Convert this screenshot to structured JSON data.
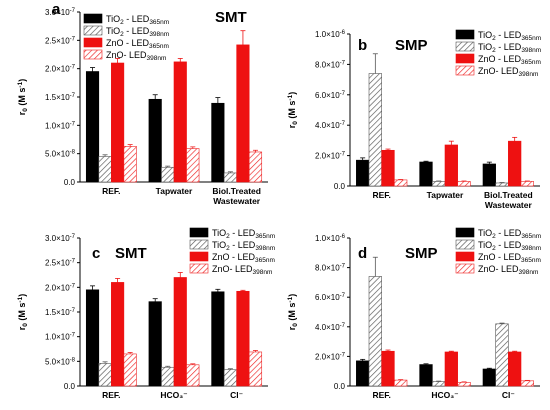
{
  "colors": {
    "tio2_365": "#000000",
    "tio2_398_hatch": "#555555",
    "zno_365": "#ee1111",
    "zno_398_hatch": "#ee2222"
  },
  "chart_data": [
    {
      "type": "bar",
      "panel": "a",
      "title": "SMT",
      "ylabel_main": "r",
      "ylabel_sub": "0",
      "ylabel_unit": "(M s",
      "ylabel_sup": "-1",
      "ylabel_close": ")",
      "categories": [
        {
          "lines": [
            "REF."
          ]
        },
        {
          "lines": [
            "Tapwater"
          ]
        },
        {
          "lines": [
            "Biol.Treated",
            "Wastewater"
          ]
        }
      ],
      "ylim": [
        0,
        3e-07
      ],
      "ticks": [
        {
          "value": 0,
          "mant": "0.0",
          "exp": ""
        },
        {
          "value": 5e-08,
          "mant": "5.0",
          "exp": "-8"
        },
        {
          "value": 1e-07,
          "mant": "1.0",
          "exp": "-7"
        },
        {
          "value": 1.5e-07,
          "mant": "1.5",
          "exp": "-7"
        },
        {
          "value": 2e-07,
          "mant": "2.0",
          "exp": "-7"
        },
        {
          "value": 2.5e-07,
          "mant": "2.5",
          "exp": "-7"
        },
        {
          "value": 3e-07,
          "mant": "3.0",
          "exp": "-7"
        }
      ],
      "legend_position": "top-left",
      "series": [
        {
          "name": "TiO",
          "name_sub": "2",
          "name_tail": " - LED",
          "name_led": "365nm",
          "style": "tio2_365",
          "values": [
            1.95e-07,
            1.46e-07,
            1.39e-07
          ],
          "errors": [
            7e-09,
            8e-09,
            1e-08
          ]
        },
        {
          "name": "TiO",
          "name_sub": "2",
          "name_tail": " - LED",
          "name_led": "398nm",
          "style": "tio2_398",
          "values": [
            4.5e-08,
            2.6e-08,
            1.6e-08
          ],
          "errors": [
            3e-09,
            2e-09,
            2e-09
          ]
        },
        {
          "name": "ZnO",
          "name_sub": "",
          "name_tail": " - LED",
          "name_led": "365nm",
          "style": "zno_365",
          "values": [
            2.1e-07,
            2.12e-07,
            2.42e-07
          ],
          "errors": [
            8e-09,
            6e-09,
            2.5e-08
          ]
        },
        {
          "name": "ZnO",
          "name_sub": "",
          "name_tail": "- LED",
          "name_led": "398nm",
          "style": "zno_398",
          "values": [
            6.3e-08,
            5.9e-08,
            5.3e-08
          ],
          "errors": [
            3e-09,
            3e-09,
            3e-09
          ]
        }
      ]
    },
    {
      "type": "bar",
      "panel": "b",
      "title": "SMP",
      "ylabel_main": "r",
      "ylabel_sub": "0",
      "ylabel_unit": "(M s",
      "ylabel_sup": "-1",
      "ylabel_close": ")",
      "categories": [
        {
          "lines": [
            "REF."
          ]
        },
        {
          "lines": [
            "Tapwater"
          ]
        },
        {
          "lines": [
            "Biol.Treated",
            "Wastewater"
          ]
        }
      ],
      "ylim": [
        0,
        1e-06
      ],
      "ticks": [
        {
          "value": 0,
          "mant": "0.0",
          "exp": ""
        },
        {
          "value": 2e-07,
          "mant": "2.0",
          "exp": "-7"
        },
        {
          "value": 4e-07,
          "mant": "4.0",
          "exp": "-7"
        },
        {
          "value": 6e-07,
          "mant": "6.0",
          "exp": "-7"
        },
        {
          "value": 8e-07,
          "mant": "8.0",
          "exp": "-7"
        },
        {
          "value": 1e-06,
          "mant": "1.0",
          "exp": "-6"
        }
      ],
      "legend_position": "top-right",
      "series": [
        {
          "name": "TiO",
          "name_sub": "2",
          "name_tail": " - LED",
          "name_led": "365nm",
          "style": "tio2_365",
          "values": [
            1.7e-07,
            1.58e-07,
            1.45e-07
          ],
          "errors": [
            1.5e-08,
            5e-09,
            1.2e-08
          ]
        },
        {
          "name": "TiO",
          "name_sub": "2",
          "name_tail": " - LED",
          "name_led": "398nm",
          "style": "tio2_398",
          "values": [
            7.4e-07,
            3e-08,
            2e-08
          ],
          "errors": [
            1.3e-07,
            3e-09,
            3e-09
          ]
        },
        {
          "name": "ZnO",
          "name_sub": "",
          "name_tail": " - LED",
          "name_led": "365nm",
          "style": "zno_365",
          "values": [
            2.35e-07,
            2.7e-07,
            2.95e-07
          ],
          "errors": [
            8e-09,
            2.5e-08,
            2.5e-08
          ]
        },
        {
          "name": "ZnO",
          "name_sub": "",
          "name_tail": "- LED",
          "name_led": "398nm",
          "style": "zno_398",
          "values": [
            4e-08,
            3e-08,
            3e-08
          ],
          "errors": [
            3e-09,
            3e-09,
            3e-09
          ]
        }
      ]
    },
    {
      "type": "bar",
      "panel": "c",
      "title": "SMT",
      "ylabel_main": "r",
      "ylabel_sub": "0",
      "ylabel_unit": "(M s",
      "ylabel_sup": "-1",
      "ylabel_close": ")",
      "categories": [
        {
          "lines": [
            "REF."
          ]
        },
        {
          "lines": [
            "HCO₃⁻"
          ]
        },
        {
          "lines": [
            "Cl⁻"
          ]
        }
      ],
      "ylim": [
        0,
        3e-07
      ],
      "ticks": [
        {
          "value": 0,
          "mant": "0.0",
          "exp": ""
        },
        {
          "value": 5e-08,
          "mant": "5.0",
          "exp": "-8"
        },
        {
          "value": 1e-07,
          "mant": "1.0",
          "exp": "-7"
        },
        {
          "value": 1.5e-07,
          "mant": "1.5",
          "exp": "-7"
        },
        {
          "value": 2e-07,
          "mant": "2.0",
          "exp": "-7"
        },
        {
          "value": 2.5e-07,
          "mant": "2.5",
          "exp": "-7"
        },
        {
          "value": 3e-07,
          "mant": "3.0",
          "exp": "-7"
        }
      ],
      "legend_position": "top-right",
      "series": [
        {
          "name": "TiO",
          "name_sub": "2",
          "name_tail": " - LED",
          "name_led": "365nm",
          "style": "tio2_365",
          "values": [
            1.95e-07,
            1.71e-07,
            1.91e-07
          ],
          "errors": [
            8e-09,
            6e-09,
            5e-09
          ]
        },
        {
          "name": "TiO",
          "name_sub": "2",
          "name_tail": " - LED",
          "name_led": "398nm",
          "style": "tio2_398",
          "values": [
            4.6e-08,
            3.8e-08,
            3.3e-08
          ],
          "errors": [
            3e-09,
            2e-09,
            2e-09
          ]
        },
        {
          "name": "ZnO",
          "name_sub": "",
          "name_tail": " - LED",
          "name_led": "365nm",
          "style": "zno_365",
          "values": [
            2.1e-07,
            2.2e-07,
            1.92e-07
          ],
          "errors": [
            8e-09,
            1e-08,
            2e-09
          ]
        },
        {
          "name": "ZnO",
          "name_sub": "",
          "name_tail": "- LED",
          "name_led": "398nm",
          "style": "zno_398",
          "values": [
            6.5e-08,
            4.3e-08,
            6.9e-08
          ],
          "errors": [
            3e-09,
            2e-09,
            3e-09
          ]
        }
      ]
    },
    {
      "type": "bar",
      "panel": "d",
      "title": "SMP",
      "ylabel_main": "r",
      "ylabel_sub": "0",
      "ylabel_unit": "(M s",
      "ylabel_sup": "-1",
      "ylabel_close": ")",
      "categories": [
        {
          "lines": [
            "REF."
          ]
        },
        {
          "lines": [
            "HCO₃⁻"
          ]
        },
        {
          "lines": [
            "Cl⁻"
          ]
        }
      ],
      "ylim": [
        0,
        1e-06
      ],
      "ticks": [
        {
          "value": 0,
          "mant": "0.0",
          "exp": ""
        },
        {
          "value": 2e-07,
          "mant": "2.0",
          "exp": "-7"
        },
        {
          "value": 4e-07,
          "mant": "4.0",
          "exp": "-7"
        },
        {
          "value": 6e-07,
          "mant": "6.0",
          "exp": "-7"
        },
        {
          "value": 8e-07,
          "mant": "8.0",
          "exp": "-7"
        },
        {
          "value": 1e-06,
          "mant": "1.0",
          "exp": "-6"
        }
      ],
      "legend_position": "top-right",
      "series": [
        {
          "name": "TiO",
          "name_sub": "2",
          "name_tail": " - LED",
          "name_led": "365nm",
          "style": "tio2_365",
          "values": [
            1.7e-07,
            1.45e-07,
            1.15e-07
          ],
          "errors": [
            1e-08,
            5e-09,
            5e-09
          ]
        },
        {
          "name": "TiO",
          "name_sub": "2",
          "name_tail": " - LED",
          "name_led": "398nm",
          "style": "tio2_398",
          "values": [
            7.4e-07,
            3e-08,
            4.2e-07
          ],
          "errors": [
            1.3e-07,
            3e-09,
            5e-09
          ]
        },
        {
          "name": "ZnO",
          "name_sub": "",
          "name_tail": " - LED",
          "name_led": "365nm",
          "style": "zno_365",
          "values": [
            2.35e-07,
            2.3e-07,
            2.3e-07
          ],
          "errors": [
            8e-09,
            5e-09,
            5e-09
          ]
        },
        {
          "name": "ZnO",
          "name_sub": "",
          "name_tail": "- LED",
          "name_led": "398nm",
          "style": "zno_398",
          "values": [
            4e-08,
            2.5e-08,
            3.5e-08
          ],
          "errors": [
            3e-09,
            3e-09,
            3e-09
          ]
        }
      ]
    }
  ]
}
